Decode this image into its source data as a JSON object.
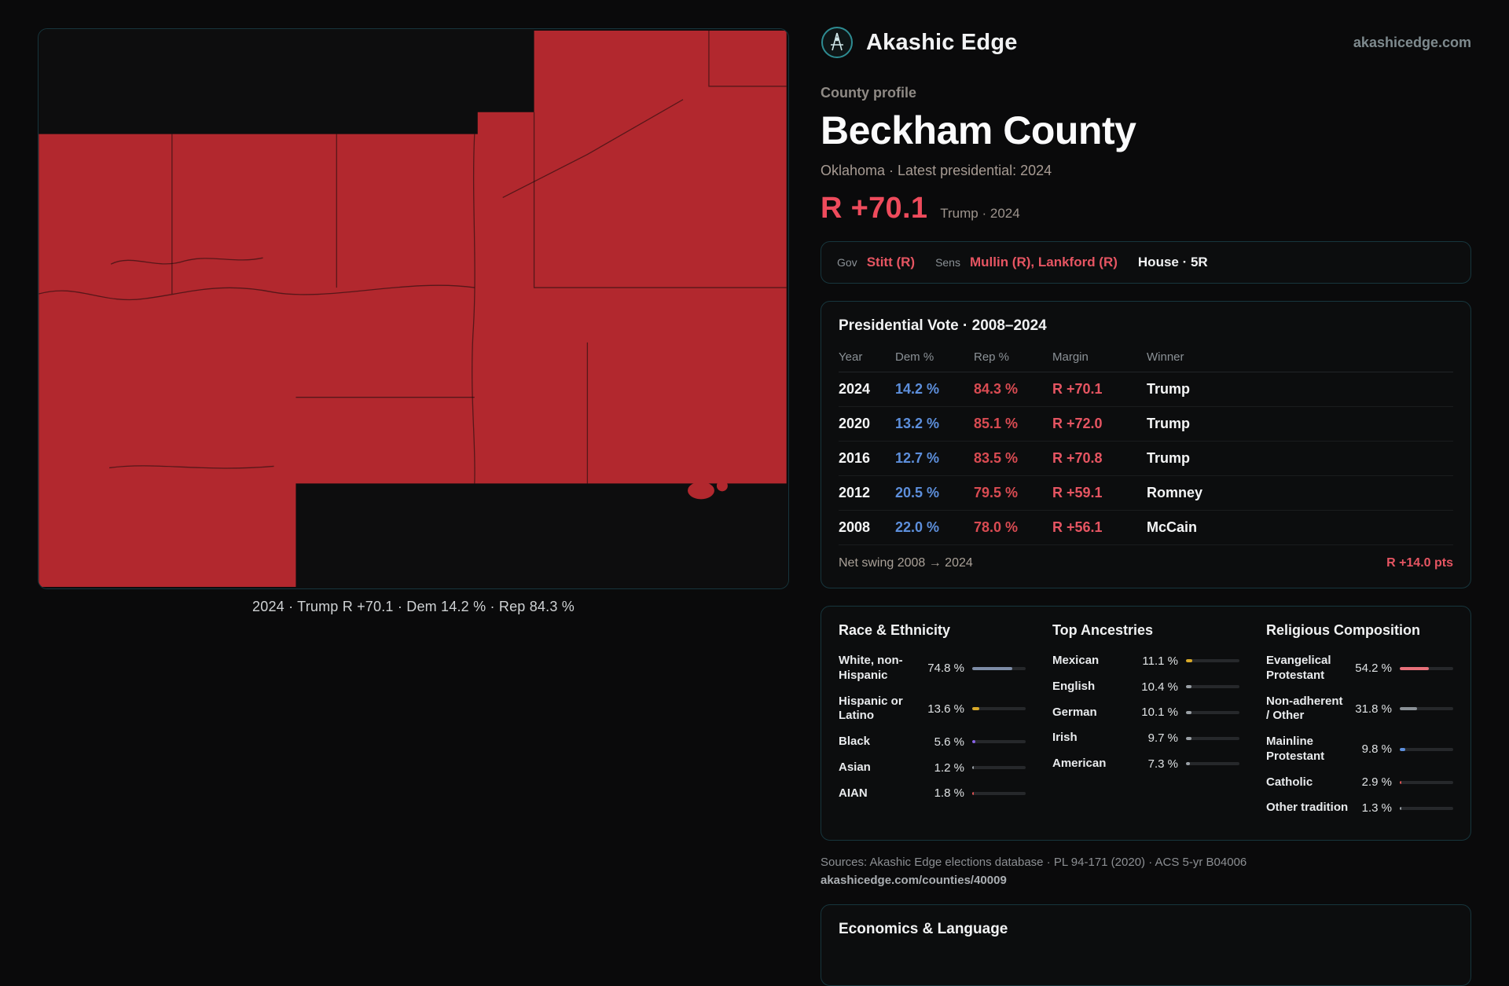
{
  "brand": {
    "name": "Akashic Edge",
    "domain": "akashicedge.com"
  },
  "colors": {
    "accent_red": "#ee4b5c",
    "dem_blue": "#5d8fdc",
    "rep_red": "#d94b52",
    "margin_red": "#e65562",
    "map_red": "#b2282e",
    "teal_border": "#17363d"
  },
  "profile": {
    "eyebrow": "County profile",
    "title": "Beckham County",
    "subtitle": "Oklahoma · Latest presidential: 2024",
    "margin_big": "R +70.1",
    "margin_note": "Trump · 2024"
  },
  "officials": {
    "gov_label": "Gov",
    "gov_value": "Stitt (R)",
    "sens_label": "Sens",
    "sens_value": "Mullin (R), Lankford (R)",
    "house": "House · 5R"
  },
  "map": {
    "caption": "2024 · Trump R +70.1 · Dem 14.2 % · Rep 84.3 %"
  },
  "presidential": {
    "title": "Presidential Vote · 2008–2024",
    "columns": [
      "Year",
      "Dem %",
      "Rep %",
      "Margin",
      "Winner"
    ],
    "rows": [
      {
        "year": "2024",
        "dem": "14.2 %",
        "rep": "84.3 %",
        "margin": "R +70.1",
        "winner": "Trump"
      },
      {
        "year": "2020",
        "dem": "13.2 %",
        "rep": "85.1 %",
        "margin": "R +72.0",
        "winner": "Trump"
      },
      {
        "year": "2016",
        "dem": "12.7 %",
        "rep": "83.5 %",
        "margin": "R +70.8",
        "winner": "Trump"
      },
      {
        "year": "2012",
        "dem": "20.5 %",
        "rep": "79.5 %",
        "margin": "R +59.1",
        "winner": "Romney"
      },
      {
        "year": "2008",
        "dem": "22.0 %",
        "rep": "78.0 %",
        "margin": "R +56.1",
        "winner": "McCain"
      }
    ],
    "net_swing_label": "Net swing 2008 → 2024",
    "net_swing_value": "R +14.0 pts"
  },
  "demographics": {
    "race": {
      "title": "Race & Ethnicity",
      "rows": [
        {
          "label": "White, non-Hispanic",
          "value": "74.8 %",
          "pct": 74.8,
          "color": "#7d8ca6"
        },
        {
          "label": "Hispanic or Latino",
          "value": "13.6 %",
          "pct": 13.6,
          "color": "#d9a928"
        },
        {
          "label": "Black",
          "value": "5.6 %",
          "pct": 5.6,
          "color": "#8a63e8"
        },
        {
          "label": "Asian",
          "value": "1.2 %",
          "pct": 1.2,
          "color": "#9aa0a6"
        },
        {
          "label": "AIAN",
          "value": "1.8 %",
          "pct": 1.8,
          "color": "#e05252"
        }
      ]
    },
    "ancestries": {
      "title": "Top Ancestries",
      "rows": [
        {
          "label": "Mexican",
          "value": "11.1 %",
          "pct": 11.1,
          "color": "#d9a928"
        },
        {
          "label": "English",
          "value": "10.4 %",
          "pct": 10.4,
          "color": "#9aa0a6"
        },
        {
          "label": "German",
          "value": "10.1 %",
          "pct": 10.1,
          "color": "#9aa0a6"
        },
        {
          "label": "Irish",
          "value": "9.7 %",
          "pct": 9.7,
          "color": "#9aa0a6"
        },
        {
          "label": "American",
          "value": "7.3 %",
          "pct": 7.3,
          "color": "#9aa0a6"
        }
      ]
    },
    "religion": {
      "title": "Religious Composition",
      "rows": [
        {
          "label": "Evangelical Protestant",
          "value": "54.2 %",
          "pct": 54.2,
          "color": "#e8707a"
        },
        {
          "label": "Non-adherent / Other",
          "value": "31.8 %",
          "pct": 31.8,
          "color": "#8a9096"
        },
        {
          "label": "Mainline Protestant",
          "value": "9.8 %",
          "pct": 9.8,
          "color": "#5d8fdc"
        },
        {
          "label": "Catholic",
          "value": "2.9 %",
          "pct": 2.9,
          "color": "#e05252"
        },
        {
          "label": "Other tradition",
          "value": "1.3 %",
          "pct": 1.3,
          "color": "#9aa0a6"
        }
      ]
    }
  },
  "sources": {
    "line1": "Sources: Akashic Edge elections database · PL 94-171 (2020) · ACS 5-yr B04006",
    "line2": "akashicedge.com/counties/40009"
  },
  "economics": {
    "title": "Economics & Language"
  }
}
